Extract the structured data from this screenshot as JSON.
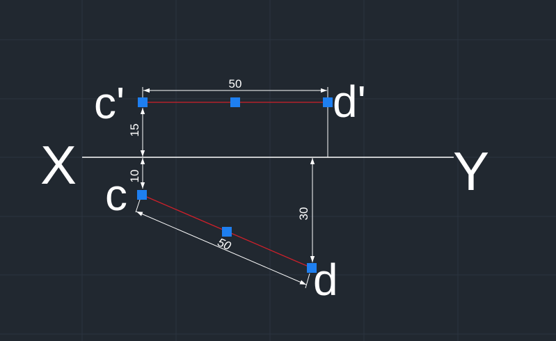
{
  "colors": {
    "background": "#212830",
    "grid": "#2c3440",
    "line": "#ffffff",
    "segment": "#d0202a",
    "grip": "#1e7ff0"
  },
  "axis_labels": {
    "left": "X",
    "right": "Y"
  },
  "point_labels": {
    "c_prime": "c'",
    "d_prime": "d'",
    "c": "c",
    "d": "d"
  },
  "dimensions": {
    "top_length": "50",
    "c_prime_height": "15",
    "c_depth": "10",
    "d_depth": "30",
    "true_length": "50"
  }
}
